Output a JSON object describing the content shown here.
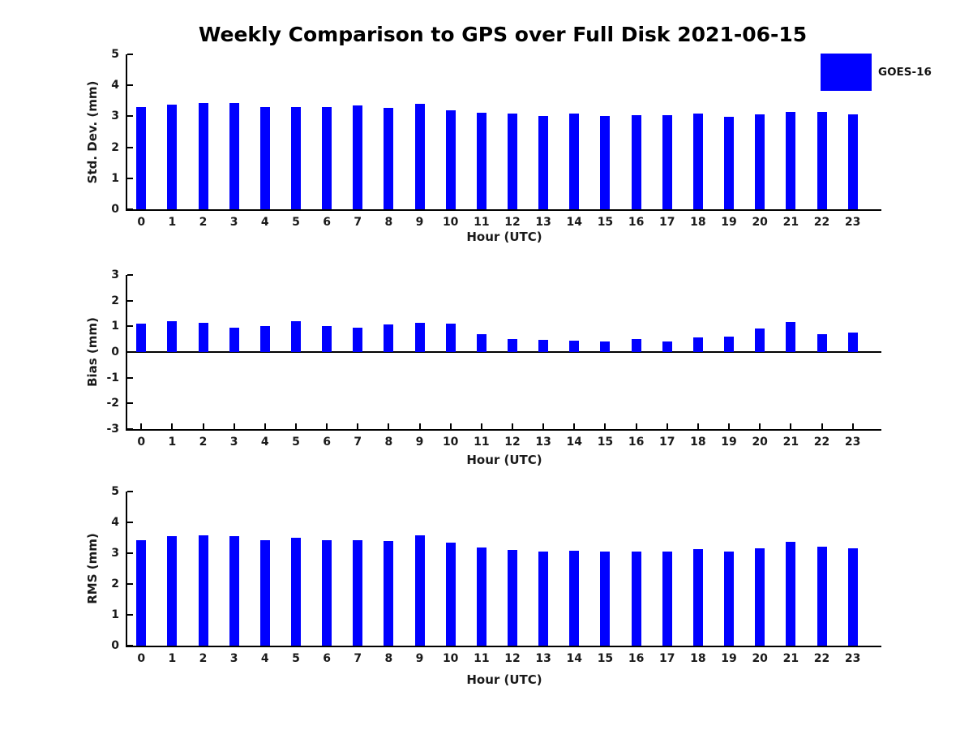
{
  "title": "Weekly Comparison to GPS over Full Disk 2021-06-15",
  "legend": {
    "label": "GOES-16",
    "swatch_color": "#0000FF",
    "position": "top-right"
  },
  "colors": {
    "bar": "#0000FF",
    "axis": "#000000",
    "text": "#1a1a1a",
    "background": "#ffffff"
  },
  "chart_data": [
    {
      "type": "bar",
      "id": "std-dev",
      "series_name": "GOES-16",
      "title": "",
      "xlabel": "Hour (UTC)",
      "ylabel": "Std. Dev. (mm)",
      "categories": [
        "0",
        "1",
        "2",
        "3",
        "4",
        "5",
        "6",
        "7",
        "8",
        "9",
        "10",
        "11",
        "12",
        "13",
        "14",
        "15",
        "16",
        "17",
        "18",
        "19",
        "20",
        "21",
        "22",
        "23"
      ],
      "values": [
        3.3,
        3.38,
        3.43,
        3.44,
        3.31,
        3.29,
        3.31,
        3.34,
        3.26,
        3.41,
        3.2,
        3.12,
        3.1,
        3.01,
        3.08,
        3.0,
        3.04,
        3.04,
        3.1,
        2.98,
        3.05,
        3.15,
        3.14,
        3.07
      ],
      "ylim": [
        0,
        5
      ],
      "yticks": [
        0,
        1,
        2,
        3,
        4,
        5
      ],
      "grid": false,
      "legend_position": "upper right outside"
    },
    {
      "type": "bar",
      "id": "bias",
      "series_name": "GOES-16",
      "title": "",
      "xlabel": "Hour (UTC)",
      "ylabel": "Bias (mm)",
      "categories": [
        "0",
        "1",
        "2",
        "3",
        "4",
        "5",
        "6",
        "7",
        "8",
        "9",
        "10",
        "11",
        "12",
        "13",
        "14",
        "15",
        "16",
        "17",
        "18",
        "19",
        "20",
        "21",
        "22",
        "23"
      ],
      "values": [
        1.1,
        1.2,
        1.14,
        0.96,
        1.02,
        1.2,
        1.01,
        0.95,
        1.07,
        1.13,
        1.1,
        0.7,
        0.52,
        0.47,
        0.44,
        0.4,
        0.49,
        0.4,
        0.57,
        0.59,
        0.91,
        1.18,
        0.7,
        0.75
      ],
      "ylim": [
        -3,
        3
      ],
      "yticks": [
        -3,
        -2,
        -1,
        0,
        1,
        2,
        3
      ],
      "grid": false,
      "zero_line": true
    },
    {
      "type": "bar",
      "id": "rms",
      "series_name": "GOES-16",
      "title": "",
      "xlabel": "Hour (UTC)",
      "ylabel": "RMS (mm)",
      "categories": [
        "0",
        "1",
        "2",
        "3",
        "4",
        "5",
        "6",
        "7",
        "8",
        "9",
        "10",
        "11",
        "12",
        "13",
        "14",
        "15",
        "16",
        "17",
        "18",
        "19",
        "20",
        "21",
        "22",
        "23"
      ],
      "values": [
        3.43,
        3.56,
        3.59,
        3.56,
        3.43,
        3.49,
        3.43,
        3.43,
        3.4,
        3.59,
        3.34,
        3.19,
        3.11,
        3.04,
        3.09,
        3.04,
        3.04,
        3.05,
        3.12,
        3.04,
        3.15,
        3.36,
        3.2,
        3.15
      ],
      "ylim": [
        0,
        5
      ],
      "yticks": [
        0,
        1,
        2,
        3,
        4,
        5
      ],
      "grid": false
    }
  ]
}
